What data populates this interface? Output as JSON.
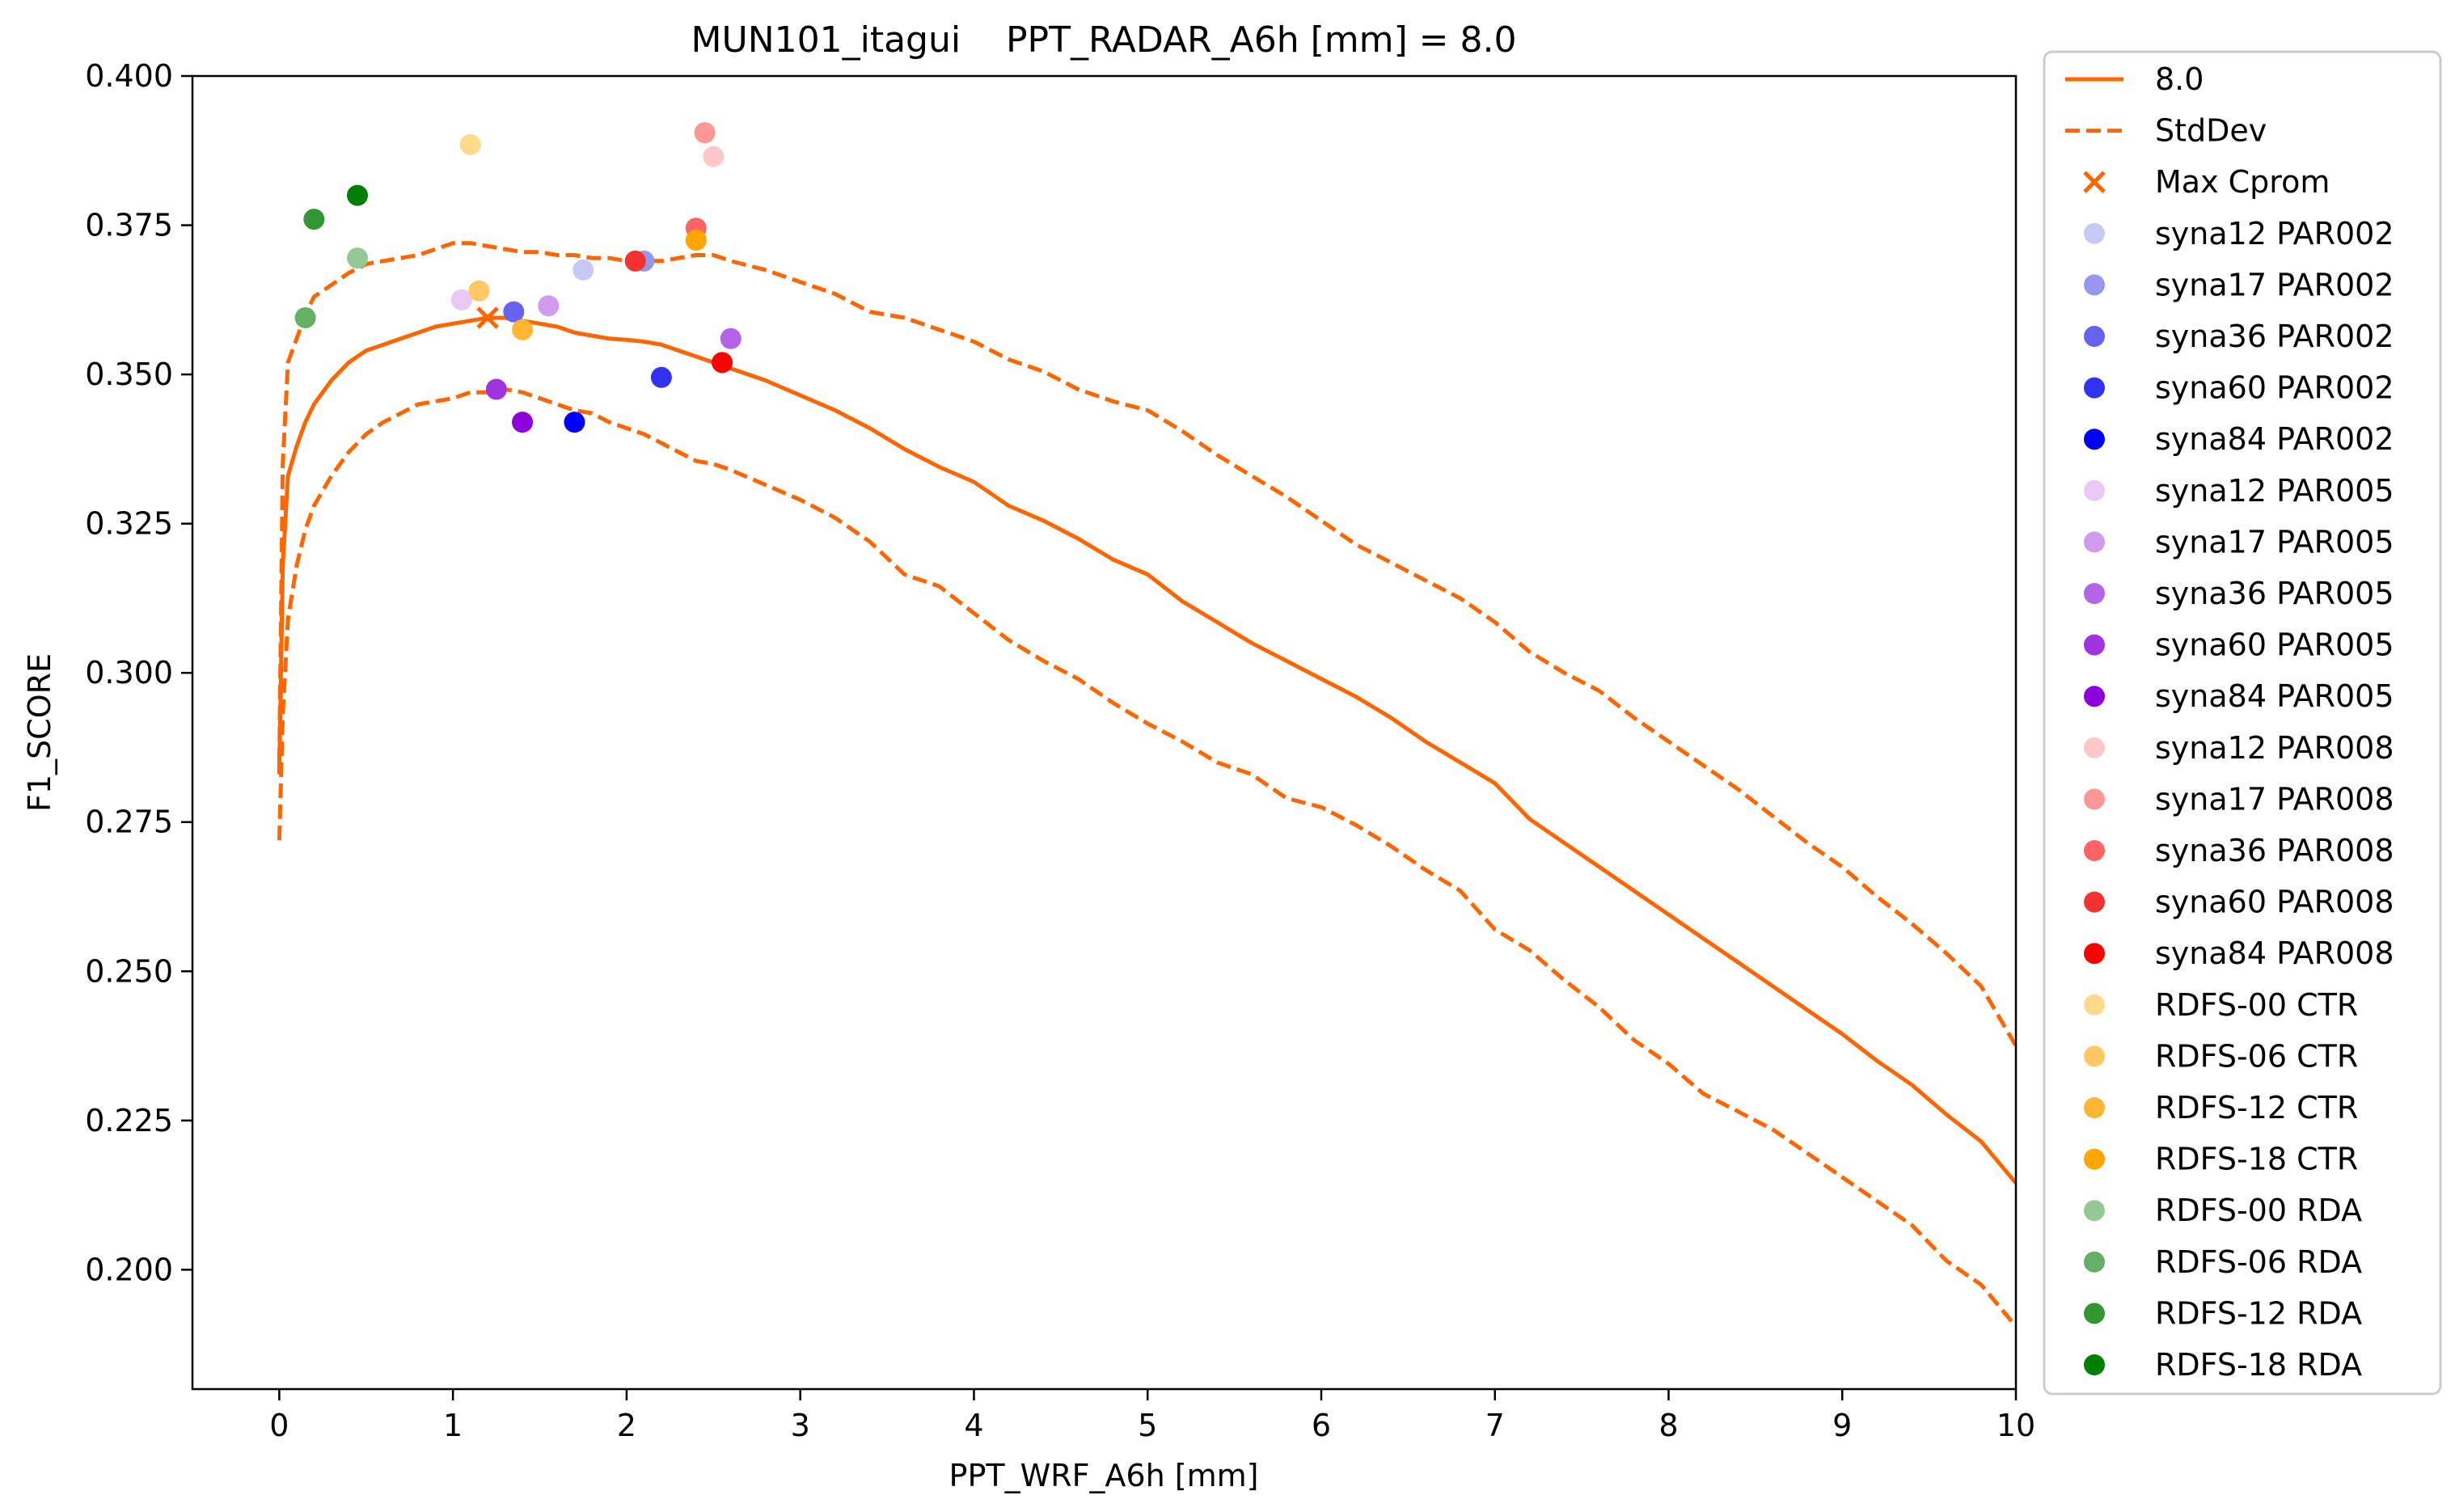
{
  "chart_data": {
    "type": "line",
    "title": "MUN101_itagui    PPT_RADAR_A6h [mm] = 8.0",
    "xlabel": "PPT_WRF_A6h [mm]",
    "ylabel": "F1_SCORE",
    "xlim": [
      -0.5,
      10
    ],
    "ylim": [
      0.18,
      0.4
    ],
    "xticks": [
      0,
      1,
      2,
      3,
      4,
      5,
      6,
      7,
      8,
      9,
      10
    ],
    "xtick_labels": [
      "0",
      "1",
      "2",
      "3",
      "4",
      "5",
      "6",
      "7",
      "8",
      "9",
      "10"
    ],
    "yticks": [
      0.2,
      0.225,
      0.25,
      0.275,
      0.3,
      0.325,
      0.35,
      0.375,
      0.4
    ],
    "ytick_labels": [
      "0.200",
      "0.225",
      "0.250",
      "0.275",
      "0.300",
      "0.325",
      "0.350",
      "0.375",
      "0.400"
    ],
    "grid": false,
    "legend_position": "outside-right",
    "line_color": "#ff6600",
    "series": [
      {
        "name": "8.0",
        "style": "solid",
        "color": "#ff6600",
        "x": [
          0,
          0.02,
          0.05,
          0.1,
          0.15,
          0.2,
          0.3,
          0.4,
          0.5,
          0.6,
          0.7,
          0.8,
          0.9,
          1.0,
          1.1,
          1.2,
          1.3,
          1.4,
          1.5,
          1.6,
          1.7,
          1.8,
          1.9,
          2.0,
          2.1,
          2.2,
          2.3,
          2.4,
          2.5,
          2.6,
          2.8,
          3.0,
          3.2,
          3.4,
          3.6,
          3.8,
          4.0,
          4.2,
          4.4,
          4.6,
          4.8,
          5.0,
          5.2,
          5.4,
          5.6,
          5.8,
          6.0,
          6.2,
          6.4,
          6.6,
          6.8,
          7.0,
          7.2,
          7.4,
          7.6,
          7.8,
          8.0,
          8.2,
          8.4,
          8.6,
          8.8,
          9.0,
          9.2,
          9.4,
          9.6,
          9.8,
          10.0
        ],
        "y": [
          0.283,
          0.318,
          0.333,
          0.338,
          0.342,
          0.345,
          0.349,
          0.352,
          0.354,
          0.355,
          0.356,
          0.357,
          0.358,
          0.3585,
          0.359,
          0.3595,
          0.3595,
          0.359,
          0.3585,
          0.358,
          0.357,
          0.3565,
          0.356,
          0.3558,
          0.3555,
          0.355,
          0.354,
          0.353,
          0.352,
          0.351,
          0.349,
          0.3465,
          0.344,
          0.341,
          0.3375,
          0.3345,
          0.332,
          0.328,
          0.3255,
          0.3225,
          0.319,
          0.3165,
          0.312,
          0.3085,
          0.305,
          0.302,
          0.299,
          0.296,
          0.2925,
          0.2885,
          0.285,
          0.2815,
          0.2755,
          0.2715,
          0.2675,
          0.2635,
          0.2595,
          0.2555,
          0.2515,
          0.2475,
          0.2435,
          0.2395,
          0.235,
          0.231,
          0.226,
          0.2215,
          0.2145
        ]
      },
      {
        "name": "StdDev",
        "style": "dashed",
        "color": "#ff6600",
        "x": [
          0,
          0.02,
          0.05,
          0.1,
          0.15,
          0.2,
          0.3,
          0.4,
          0.5,
          0.6,
          0.7,
          0.8,
          0.9,
          1.0,
          1.1,
          1.2,
          1.3,
          1.4,
          1.5,
          1.6,
          1.7,
          1.8,
          1.9,
          2.0,
          2.1,
          2.2,
          2.3,
          2.4,
          2.5,
          2.6,
          2.8,
          3.0,
          3.2,
          3.4,
          3.6,
          3.8,
          4.0,
          4.2,
          4.4,
          4.6,
          4.8,
          5.0,
          5.2,
          5.4,
          5.6,
          5.8,
          6.0,
          6.2,
          6.4,
          6.6,
          6.8,
          7.0,
          7.2,
          7.4,
          7.6,
          7.8,
          8.0,
          8.2,
          8.4,
          8.6,
          8.8,
          9.0,
          9.2,
          9.4,
          9.6,
          9.8,
          10.0
        ],
        "y": [
          0.285,
          0.335,
          0.352,
          0.356,
          0.36,
          0.363,
          0.365,
          0.367,
          0.3685,
          0.369,
          0.3695,
          0.37,
          0.371,
          0.372,
          0.372,
          0.3715,
          0.371,
          0.3705,
          0.3705,
          0.37,
          0.37,
          0.3695,
          0.3695,
          0.369,
          0.369,
          0.369,
          0.3695,
          0.37,
          0.37,
          0.369,
          0.3675,
          0.3655,
          0.3635,
          0.3605,
          0.3595,
          0.3575,
          0.3555,
          0.3525,
          0.3505,
          0.3475,
          0.3455,
          0.344,
          0.3405,
          0.3365,
          0.333,
          0.3295,
          0.3255,
          0.3215,
          0.3185,
          0.3155,
          0.3125,
          0.3085,
          0.3035,
          0.3,
          0.297,
          0.2925,
          0.2885,
          0.2845,
          0.2805,
          0.276,
          0.2715,
          0.2675,
          0.2625,
          0.258,
          0.253,
          0.2475,
          0.2375
        ]
      },
      {
        "name": "",
        "style": "dashed",
        "color": "#ff6600",
        "x": [
          0,
          0.02,
          0.05,
          0.1,
          0.15,
          0.2,
          0.3,
          0.4,
          0.5,
          0.6,
          0.7,
          0.8,
          0.9,
          1.0,
          1.1,
          1.2,
          1.3,
          1.4,
          1.5,
          1.6,
          1.7,
          1.8,
          1.9,
          2.0,
          2.1,
          2.2,
          2.3,
          2.4,
          2.5,
          2.6,
          2.8,
          3.0,
          3.2,
          3.4,
          3.6,
          3.8,
          4.0,
          4.2,
          4.4,
          4.6,
          4.8,
          5.0,
          5.2,
          5.4,
          5.6,
          5.8,
          6.0,
          6.2,
          6.4,
          6.6,
          6.8,
          7.0,
          7.2,
          7.4,
          7.6,
          7.8,
          8.0,
          8.2,
          8.4,
          8.6,
          8.8,
          9.0,
          9.2,
          9.4,
          9.6,
          9.8,
          10.0
        ],
        "y": [
          0.272,
          0.293,
          0.309,
          0.318,
          0.324,
          0.328,
          0.333,
          0.337,
          0.34,
          0.342,
          0.3435,
          0.345,
          0.3455,
          0.346,
          0.347,
          0.347,
          0.3475,
          0.347,
          0.346,
          0.345,
          0.344,
          0.3435,
          0.342,
          0.341,
          0.34,
          0.3385,
          0.337,
          0.3355,
          0.335,
          0.334,
          0.3315,
          0.329,
          0.326,
          0.322,
          0.3165,
          0.3145,
          0.31,
          0.3055,
          0.302,
          0.299,
          0.295,
          0.2915,
          0.2885,
          0.285,
          0.283,
          0.279,
          0.2775,
          0.2745,
          0.271,
          0.267,
          0.2635,
          0.257,
          0.2535,
          0.2485,
          0.244,
          0.2385,
          0.2345,
          0.2295,
          0.2265,
          0.2235,
          0.2195,
          0.2155,
          0.2115,
          0.2075,
          0.2015,
          0.1975,
          0.1905
        ]
      }
    ],
    "max_point": {
      "name": "Max Cprom",
      "x": 1.2,
      "y": 0.3595,
      "color": "#ff6600",
      "marker": "x"
    },
    "scatter": [
      {
        "name": "syna12 PAR002",
        "color": "#c8c8f5",
        "x": 1.75,
        "y": 0.3675
      },
      {
        "name": "syna17 PAR002",
        "color": "#9696ee",
        "x": 2.1,
        "y": 0.369
      },
      {
        "name": "syna36 PAR002",
        "color": "#6464f0",
        "x": 1.35,
        "y": 0.3605
      },
      {
        "name": "syna60 PAR002",
        "color": "#3232f5",
        "x": 2.2,
        "y": 0.3495
      },
      {
        "name": "syna84 PAR002",
        "color": "#0000ff",
        "x": 1.7,
        "y": 0.342
      },
      {
        "name": "syna12 PAR005",
        "color": "#e8c8f5",
        "x": 1.05,
        "y": 0.3625
      },
      {
        "name": "syna17 PAR005",
        "color": "#d09bee",
        "x": 1.55,
        "y": 0.3615
      },
      {
        "name": "syna36 PAR005",
        "color": "#b464e6",
        "x": 2.6,
        "y": 0.356
      },
      {
        "name": "syna60 PAR005",
        "color": "#a032e0",
        "x": 1.25,
        "y": 0.3475
      },
      {
        "name": "syna84 PAR005",
        "color": "#8c00dc",
        "x": 1.4,
        "y": 0.342
      },
      {
        "name": "syna12 PAR008",
        "color": "#ffc8c8",
        "x": 2.5,
        "y": 0.3865
      },
      {
        "name": "syna17 PAR008",
        "color": "#ff9696",
        "x": 2.45,
        "y": 0.3905
      },
      {
        "name": "syna36 PAR008",
        "color": "#ff6464",
        "x": 2.4,
        "y": 0.3745
      },
      {
        "name": "syna60 PAR008",
        "color": "#f53232",
        "x": 2.05,
        "y": 0.369
      },
      {
        "name": "syna84 PAR008",
        "color": "#ff0000",
        "x": 2.55,
        "y": 0.352
      },
      {
        "name": "RDFS-00 CTR",
        "color": "#ffd98c",
        "x": 1.1,
        "y": 0.3885
      },
      {
        "name": "RDFS-06 CTR",
        "color": "#ffc864",
        "x": 1.15,
        "y": 0.364
      },
      {
        "name": "RDFS-12 CTR",
        "color": "#ffb432",
        "x": 1.4,
        "y": 0.3575
      },
      {
        "name": "RDFS-18 CTR",
        "color": "#ffa500",
        "x": 2.4,
        "y": 0.3725
      },
      {
        "name": "RDFS-00 RDA",
        "color": "#96c896",
        "x": 0.45,
        "y": 0.3695
      },
      {
        "name": "RDFS-06 RDA",
        "color": "#64af64",
        "x": 0.15,
        "y": 0.3595
      },
      {
        "name": "RDFS-12 RDA",
        "color": "#329632",
        "x": 0.2,
        "y": 0.376
      },
      {
        "name": "RDFS-18 RDA",
        "color": "#008000",
        "x": 0.45,
        "y": 0.38
      }
    ],
    "legend": [
      "8.0",
      "StdDev",
      "Max Cprom",
      "syna12 PAR002",
      "syna17 PAR002",
      "syna36 PAR002",
      "syna60 PAR002",
      "syna84 PAR002",
      "syna12 PAR005",
      "syna17 PAR005",
      "syna36 PAR005",
      "syna60 PAR005",
      "syna84 PAR005",
      "syna12 PAR008",
      "syna17 PAR008",
      "syna36 PAR008",
      "syna60 PAR008",
      "syna84 PAR008",
      " RDFS-00 CTR",
      " RDFS-06 CTR",
      " RDFS-12 CTR",
      " RDFS-18 CTR",
      " RDFS-00 RDA",
      " RDFS-06 RDA",
      " RDFS-12 RDA",
      " RDFS-18 RDA"
    ]
  }
}
